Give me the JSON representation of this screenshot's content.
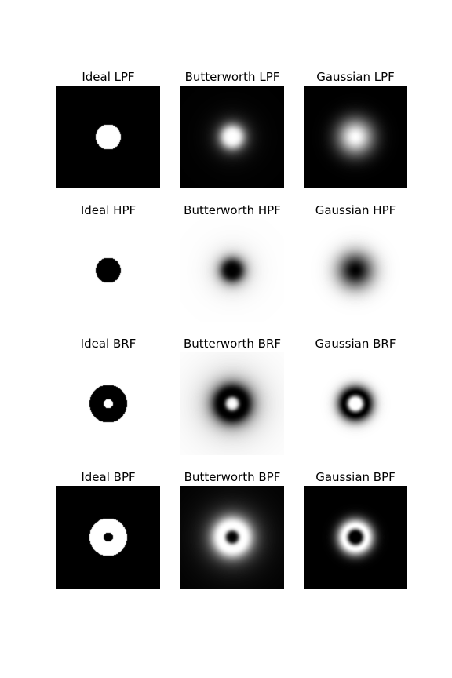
{
  "panels": [
    {
      "title": "Ideal LPF",
      "filter": "ideal",
      "kind": "lowpass"
    },
    {
      "title": "Butterworth LPF",
      "filter": "butterworth",
      "kind": "lowpass"
    },
    {
      "title": "Gaussian LPF",
      "filter": "gaussian",
      "kind": "lowpass"
    },
    {
      "title": "Ideal HPF",
      "filter": "ideal",
      "kind": "highpass"
    },
    {
      "title": "Butterworth HPF",
      "filter": "butterworth",
      "kind": "highpass"
    },
    {
      "title": "Gaussian HPF",
      "filter": "gaussian",
      "kind": "highpass"
    },
    {
      "title": "Ideal BRF",
      "filter": "ideal",
      "kind": "bandreject"
    },
    {
      "title": "Butterworth BRF",
      "filter": "butterworth",
      "kind": "bandreject"
    },
    {
      "title": "Gaussian BRF",
      "filter": "gaussian",
      "kind": "bandreject"
    },
    {
      "title": "Ideal BPF",
      "filter": "ideal",
      "kind": "bandpass"
    },
    {
      "title": "Butterworth BPF",
      "filter": "butterworth",
      "kind": "bandpass"
    },
    {
      "title": "Gaussian BPF",
      "filter": "gaussian",
      "kind": "bandpass"
    }
  ],
  "colors": {
    "pass": "#ffffff",
    "stop": "#000000",
    "background": "#ffffff"
  }
}
